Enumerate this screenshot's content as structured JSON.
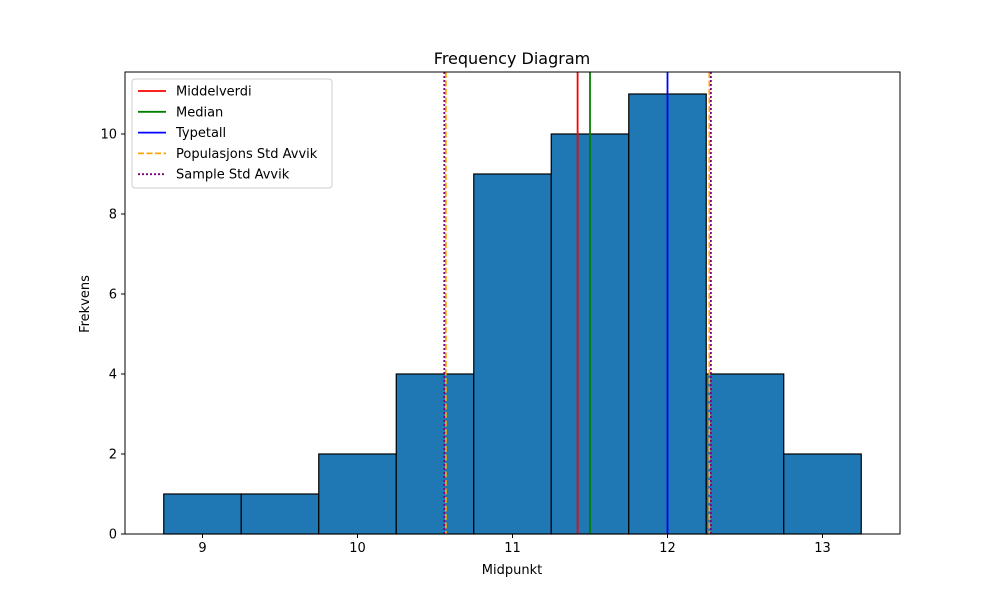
{
  "chart_data": {
    "type": "bar",
    "title": "Frequency Diagram",
    "xlabel": "Midpunkt",
    "ylabel": "Frekvens",
    "xlim": [
      8.5,
      13.5
    ],
    "ylim": [
      0,
      11.55
    ],
    "xticks": [
      9,
      10,
      11,
      12,
      13
    ],
    "yticks": [
      0,
      2,
      4,
      6,
      8,
      10
    ],
    "bin_width": 0.5,
    "bins": [
      {
        "midpoint": 9.0,
        "value": 1
      },
      {
        "midpoint": 9.5,
        "value": 1
      },
      {
        "midpoint": 10.0,
        "value": 2
      },
      {
        "midpoint": 10.5,
        "value": 4
      },
      {
        "midpoint": 11.0,
        "value": 9
      },
      {
        "midpoint": 11.5,
        "value": 10
      },
      {
        "midpoint": 12.0,
        "value": 11
      },
      {
        "midpoint": 12.5,
        "value": 4
      },
      {
        "midpoint": 13.0,
        "value": 2
      }
    ],
    "bar_color": "#1f77b4",
    "bar_edge_color": "#000000",
    "grid": false,
    "legend_position": "top-left",
    "vlines": [
      {
        "name": "Middelverdi",
        "x": [
          11.42
        ],
        "color": "#ff0000",
        "style": "solid"
      },
      {
        "name": "Median",
        "x": [
          11.5
        ],
        "color": "#008000",
        "style": "solid"
      },
      {
        "name": "Typetall",
        "x": [
          12.0
        ],
        "color": "#0000ff",
        "style": "solid"
      },
      {
        "name": "Populasjons Std Avvik",
        "x": [
          10.57,
          12.27
        ],
        "color": "#ffa500",
        "style": "dashed"
      },
      {
        "name": "Sample Std Avvik",
        "x": [
          10.56,
          12.28
        ],
        "color": "#800080",
        "style": "dotted"
      }
    ]
  }
}
